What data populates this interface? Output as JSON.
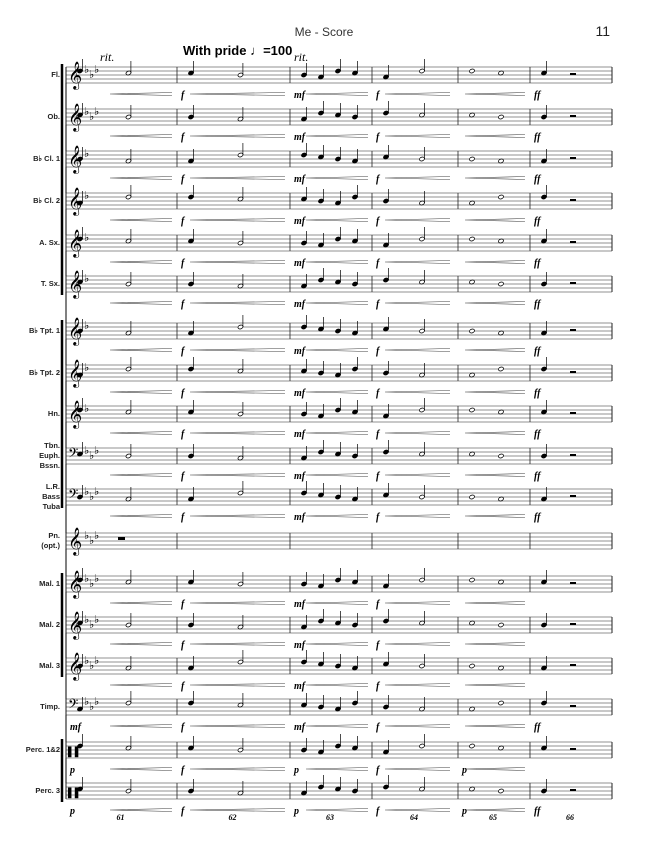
{
  "header": {
    "title": "Me - Score",
    "page_number": "11"
  },
  "tempo_marking": "With pride",
  "tempo_value": "=100",
  "rit_marks": [
    "rit.",
    "rit."
  ],
  "measure_numbers": [
    "61",
    "62",
    "63",
    "64",
    "65",
    "66"
  ],
  "staves": [
    {
      "label": [
        "Fl."
      ],
      "clef": "treble",
      "dynamics": [
        [
          1,
          "f"
        ],
        [
          2,
          "mf"
        ],
        [
          3,
          "f"
        ],
        [
          5,
          "ff"
        ]
      ]
    },
    {
      "label": [
        "Ob."
      ],
      "clef": "treble",
      "dynamics": [
        [
          1,
          "f"
        ],
        [
          2,
          "mf"
        ],
        [
          3,
          "f"
        ],
        [
          5,
          "ff"
        ]
      ]
    },
    {
      "label": [
        "B♭ Cl. 1"
      ],
      "clef": "treble",
      "dynamics": [
        [
          1,
          "f"
        ],
        [
          2,
          "mf"
        ],
        [
          3,
          "f"
        ],
        [
          5,
          "ff"
        ]
      ]
    },
    {
      "label": [
        "B♭ Cl. 2"
      ],
      "clef": "treble",
      "dynamics": [
        [
          1,
          "f"
        ],
        [
          2,
          "mf"
        ],
        [
          3,
          "f"
        ],
        [
          5,
          "ff"
        ]
      ]
    },
    {
      "label": [
        "A. Sx."
      ],
      "clef": "treble",
      "dynamics": [
        [
          1,
          "f"
        ],
        [
          2,
          "mf"
        ],
        [
          3,
          "f"
        ],
        [
          5,
          "ff"
        ]
      ]
    },
    {
      "label": [
        "T. Sx."
      ],
      "clef": "treble",
      "dynamics": [
        [
          1,
          "f"
        ],
        [
          2,
          "mf"
        ],
        [
          3,
          "f"
        ],
        [
          5,
          "ff"
        ]
      ]
    },
    {
      "label": [
        "B♭ Tpt. 1"
      ],
      "clef": "treble",
      "dynamics": [
        [
          1,
          "f"
        ],
        [
          2,
          "mf"
        ],
        [
          3,
          "f"
        ],
        [
          5,
          "ff"
        ]
      ]
    },
    {
      "label": [
        "B♭ Tpt. 2"
      ],
      "clef": "treble",
      "dynamics": [
        [
          1,
          "f"
        ],
        [
          2,
          "mf"
        ],
        [
          3,
          "f"
        ],
        [
          5,
          "ff"
        ]
      ]
    },
    {
      "label": [
        "Hn."
      ],
      "clef": "treble",
      "dynamics": [
        [
          1,
          "f"
        ],
        [
          2,
          "mf"
        ],
        [
          3,
          "f"
        ],
        [
          5,
          "ff"
        ]
      ]
    },
    {
      "label": [
        "Tbn.",
        "Euph.",
        "Bssn."
      ],
      "clef": "bass",
      "dynamics": [
        [
          1,
          "f"
        ],
        [
          2,
          "mf"
        ],
        [
          3,
          "f"
        ],
        [
          5,
          "ff"
        ]
      ]
    },
    {
      "label": [
        "L.R.",
        "Bass",
        "Tuba"
      ],
      "clef": "bass",
      "dynamics": [
        [
          1,
          "f"
        ],
        [
          2,
          "mf"
        ],
        [
          3,
          "f"
        ],
        [
          5,
          "ff"
        ]
      ]
    },
    {
      "label": [
        "Pn.",
        "(opt.)"
      ],
      "clef": "treble",
      "dynamics": []
    },
    {
      "label": [
        "Mal. 1"
      ],
      "clef": "treble",
      "dynamics": [
        [
          1,
          "f"
        ],
        [
          2,
          "mf"
        ],
        [
          3,
          "f"
        ]
      ]
    },
    {
      "label": [
        "Mal. 2"
      ],
      "clef": "treble",
      "dynamics": [
        [
          1,
          "f"
        ],
        [
          2,
          "mf"
        ],
        [
          3,
          "f"
        ]
      ]
    },
    {
      "label": [
        "Mal. 3"
      ],
      "clef": "treble",
      "dynamics": [
        [
          1,
          "f"
        ],
        [
          2,
          "mf"
        ],
        [
          3,
          "f"
        ]
      ]
    },
    {
      "label": [
        "Timp."
      ],
      "clef": "bass",
      "dynamics": [
        [
          0,
          "mf"
        ],
        [
          1,
          "f"
        ],
        [
          2,
          "mf"
        ],
        [
          3,
          "f"
        ],
        [
          5,
          "ff"
        ]
      ]
    },
    {
      "label": [
        "Perc. 1&2"
      ],
      "clef": "percussion",
      "dynamics": [
        [
          0,
          "p"
        ],
        [
          1,
          "f"
        ],
        [
          2,
          "p"
        ],
        [
          3,
          "f"
        ],
        [
          4,
          "p"
        ]
      ]
    },
    {
      "label": [
        "Perc. 3"
      ],
      "clef": "percussion",
      "dynamics": [
        [
          0,
          "p"
        ],
        [
          1,
          "f"
        ],
        [
          2,
          "p"
        ],
        [
          3,
          "f"
        ],
        [
          4,
          "p"
        ],
        [
          5,
          "ff"
        ]
      ]
    }
  ]
}
